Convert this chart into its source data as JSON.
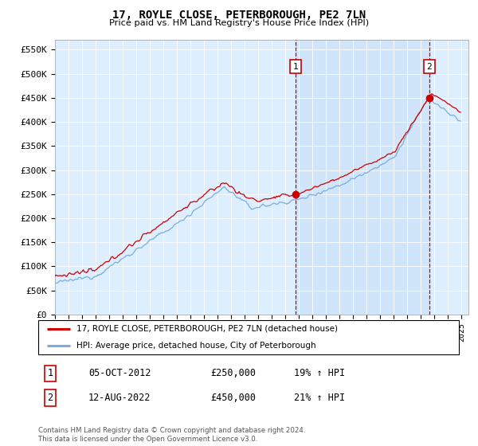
{
  "title": "17, ROYLE CLOSE, PETERBOROUGH, PE2 7LN",
  "subtitle": "Price paid vs. HM Land Registry's House Price Index (HPI)",
  "ylabel_ticks": [
    "£0",
    "£50K",
    "£100K",
    "£150K",
    "£200K",
    "£250K",
    "£300K",
    "£350K",
    "£400K",
    "£450K",
    "£500K",
    "£550K"
  ],
  "ytick_values": [
    0,
    50000,
    100000,
    150000,
    200000,
    250000,
    300000,
    350000,
    400000,
    450000,
    500000,
    550000
  ],
  "ylim": [
    0,
    570000
  ],
  "xlim_start": 1995.0,
  "xlim_end": 2025.5,
  "hpi_color": "#7aaddb",
  "price_color": "#cc0000",
  "bg_color": "#ddeeff",
  "shade_color": "#c8dff5",
  "purchase1_x": 2012.75,
  "purchase1_y": 250000,
  "purchase2_x": 2022.6,
  "purchase2_y": 450000,
  "legend_line1": "17, ROYLE CLOSE, PETERBOROUGH, PE2 7LN (detached house)",
  "legend_line2": "HPI: Average price, detached house, City of Peterborough",
  "note1_label": "1",
  "note1_date": "05-OCT-2012",
  "note1_price": "£250,000",
  "note1_hpi": "19% ↑ HPI",
  "note2_label": "2",
  "note2_date": "12-AUG-2022",
  "note2_price": "£450,000",
  "note2_hpi": "21% ↑ HPI",
  "footer": "Contains HM Land Registry data © Crown copyright and database right 2024.\nThis data is licensed under the Open Government Licence v3.0."
}
